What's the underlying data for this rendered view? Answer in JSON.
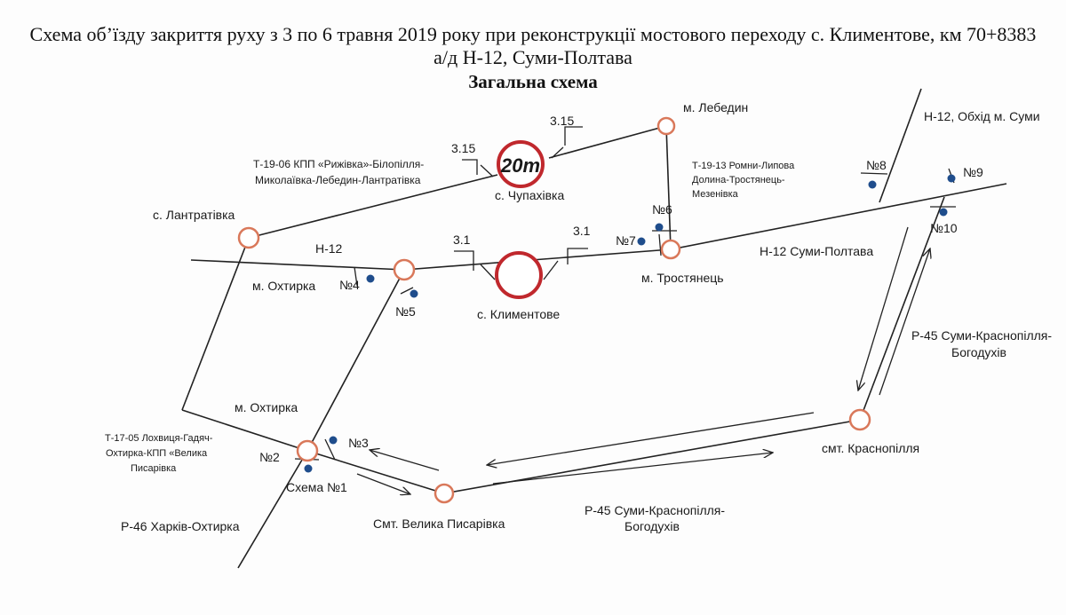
{
  "header": {
    "line1": "Схема об’їзду закриття руху з 3 по 6 травня 2019 року при реконструкції мостового переходу с. Климентове, км 70+8383",
    "line2": "а/д Н-12, Суми-Полтава",
    "subtitle": "Загальна схема"
  },
  "signs": {
    "weight_limit": "20т",
    "sign_3_15": "3.15",
    "sign_3_1": "3.1"
  },
  "roads": {
    "t1906": [
      "Т-19-06 КПП «Рижівка»-Білопілля-",
      "Миколаївка-Лебедин-Лантратівка"
    ],
    "t1913": [
      "Т-19-13 Ромни-Липова",
      "Долина-Тростянець-",
      "Мезенівка"
    ],
    "h12": "Н-12",
    "h12_sp": "Н-12 Суми-Полтава",
    "h12_bypass": "Н-12, Обхід м. Суми",
    "p45_right": [
      "Р-45 Суми-Краснопілля-",
      "Богодухів"
    ],
    "p45_bottom": [
      "Р-45 Суми-Краснопілля-",
      "Богодухів"
    ],
    "t1705": [
      "Т-17-05 Лохвиця-Гадяч-",
      "Охтирка-КПП «Велика",
      "Писарівка"
    ],
    "p46": "Р-46 Харків-Охтирка"
  },
  "places": {
    "lebedyn": "м. Лебедин",
    "chupakhivka": "с. Чупахівка",
    "lantrativka": "с. Лантратівка",
    "okhtyrka_n": "м. Охтирка",
    "klymentove": "с. Климентове",
    "trostianets": "м. Тростянець",
    "okhtyrka_s": "м. Охтирка",
    "krasnopillia": "смт. Краснопілля",
    "pysarivka": "Смт. Велика Писарівка"
  },
  "points": {
    "n2": "№2",
    "n3": "№3",
    "n4": "№4",
    "n5": "№5",
    "n6": "№6",
    "n7": "№7",
    "n8": "№8",
    "n9": "№9",
    "n10": "№10"
  },
  "scheme_label": "Схема №1",
  "colors": {
    "node": "#d9785a",
    "closure": "#c0282d",
    "marker": "#1f4d8c",
    "line": "#222222"
  }
}
